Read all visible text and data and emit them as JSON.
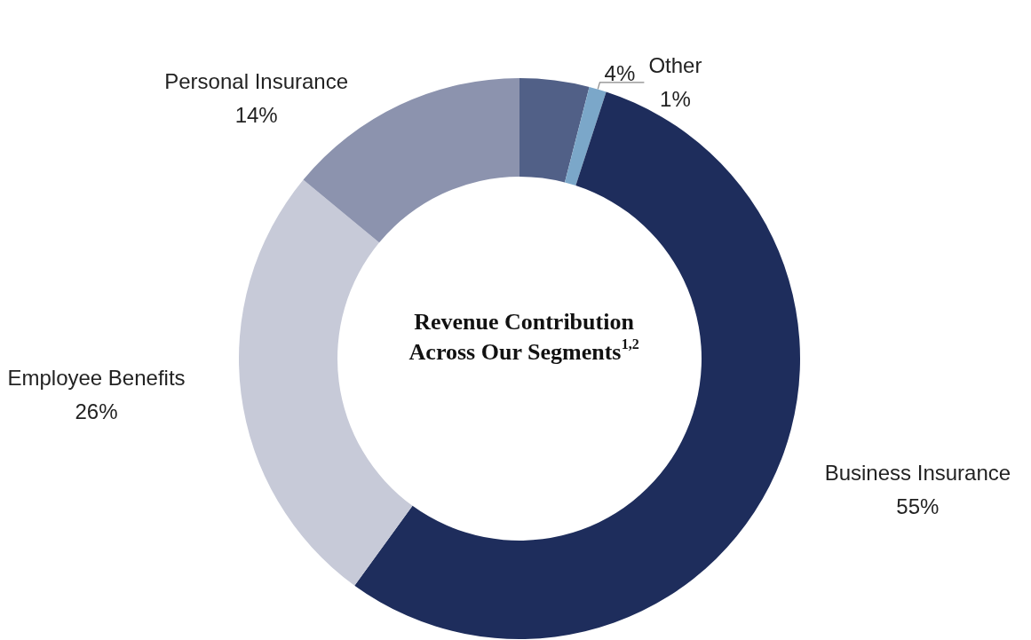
{
  "chart_data": {
    "type": "donut",
    "title": "Revenue Contribution Across Our Segments$^{1,2}$",
    "categories": [
      null,
      "Other",
      "Business Insurance",
      "Employee Benefits",
      "Personal Insurance"
    ],
    "values": [
      4,
      1,
      55,
      26,
      14
    ],
    "colors": [
      "#516087",
      "#7ba7c9",
      "#1e2d5c",
      "#c7cad8",
      "#8c93ae"
    ],
    "value_labels": [
      "4%",
      "1%",
      "55%",
      "26%",
      "14%"
    ],
    "legend": false
  }
}
